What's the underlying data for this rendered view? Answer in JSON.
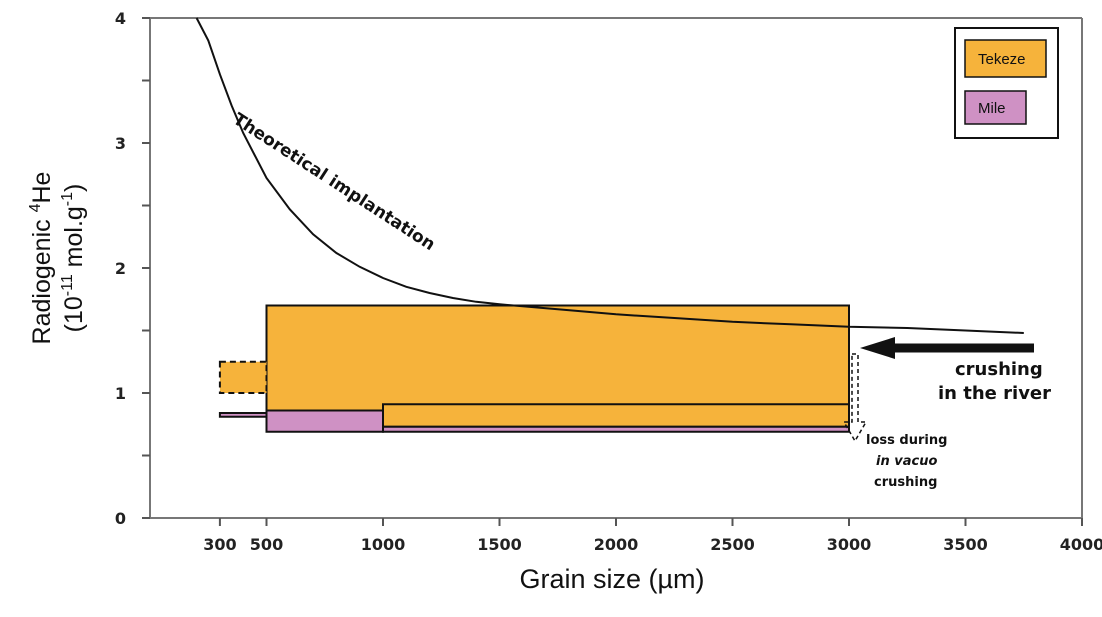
{
  "chart_data": {
    "type": "bar",
    "title": "",
    "xlabel": "Grain size (µm)",
    "ylabel_line1_base": "Radiogenic ",
    "ylabel_line1_sup": "4",
    "ylabel_line1_end": "He",
    "ylabel_line2_base": "(10",
    "ylabel_line2_sup1": "-11",
    "ylabel_line2_mid": " mol.g",
    "ylabel_line2_sup2": "-1",
    "ylabel_line2_end": ")",
    "xlim": [
      0,
      4000
    ],
    "ylim": [
      0,
      4
    ],
    "x_ticks": [
      {
        "value": 300,
        "label": "300"
      },
      {
        "value": 500,
        "label": "500"
      },
      {
        "value": 1000,
        "label": "1000"
      },
      {
        "value": 1500,
        "label": "1500"
      },
      {
        "value": 2000,
        "label": "2000"
      },
      {
        "value": 2500,
        "label": "2500"
      },
      {
        "value": 3000,
        "label": "3000"
      },
      {
        "value": 3500,
        "label": "3500"
      },
      {
        "value": 4000,
        "label": "4000"
      }
    ],
    "y_ticks": [
      {
        "value": 0,
        "label": "0"
      },
      {
        "value": 1,
        "label": "1"
      },
      {
        "value": 2,
        "label": "2"
      },
      {
        "value": 3,
        "label": "3"
      },
      {
        "value": 4,
        "label": "4"
      }
    ],
    "y_minor_ticks": [
      0.5,
      1.5,
      2.5,
      3.5
    ],
    "legend": {
      "placement": "top-right",
      "entries": [
        {
          "name": "Tekeze",
          "color": "#f6b33b"
        },
        {
          "name": "Mile",
          "color": "#cf91c4"
        }
      ]
    },
    "series": [
      {
        "name": "Tekeze",
        "color": "#f6b33b",
        "ranges": [
          {
            "x0": 500,
            "x1": 3000,
            "y0": 0.85,
            "y1": 1.7
          },
          {
            "x0": 1000,
            "x1": 3000,
            "y0": 0.73,
            "y1": 0.91
          },
          {
            "x0": 300,
            "x1": 500,
            "y0": 1.0,
            "y1": 1.25,
            "dashed": true
          }
        ]
      },
      {
        "name": "Mile",
        "color": "#cf91c4",
        "ranges": [
          {
            "x0": 500,
            "x1": 1000,
            "y0": 0.69,
            "y1": 0.86
          },
          {
            "x0": 1000,
            "x1": 3000,
            "y0": 0.69,
            "y1": 0.73
          },
          {
            "x0": 300,
            "x1": 500,
            "y0": 0.81,
            "y1": 0.84
          }
        ]
      }
    ],
    "theoretical_curve": {
      "label": "Theoretical implantation",
      "points": [
        [
          200,
          4.0
        ],
        [
          250,
          3.82
        ],
        [
          300,
          3.55
        ],
        [
          350,
          3.3
        ],
        [
          400,
          3.08
        ],
        [
          500,
          2.72
        ],
        [
          600,
          2.47
        ],
        [
          700,
          2.27
        ],
        [
          800,
          2.12
        ],
        [
          900,
          2.01
        ],
        [
          1000,
          1.92
        ],
        [
          1100,
          1.85
        ],
        [
          1200,
          1.8
        ],
        [
          1300,
          1.76
        ],
        [
          1400,
          1.73
        ],
        [
          1500,
          1.71
        ],
        [
          1750,
          1.67
        ],
        [
          2000,
          1.63
        ],
        [
          2250,
          1.6
        ],
        [
          2500,
          1.57
        ],
        [
          2750,
          1.55
        ],
        [
          3000,
          1.53
        ],
        [
          3250,
          1.52
        ],
        [
          3500,
          1.5
        ],
        [
          3750,
          1.48
        ]
      ]
    },
    "annotations": {
      "crushing_line1": "crushing",
      "crushing_line2": "in the river",
      "loss_line1": "loss during",
      "loss_line2": "in vacuo",
      "loss_line3": "crushing"
    }
  }
}
